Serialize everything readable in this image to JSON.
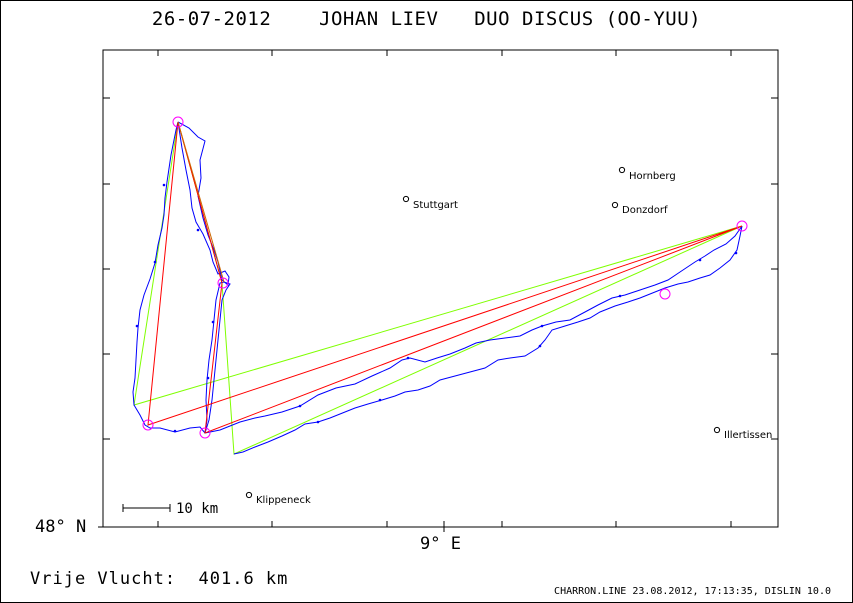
{
  "title": "26-07-2012    JOHAN LIEV   DUO DISCUS (OO-YUU)",
  "axes": {
    "x_label": "9° E",
    "y_label": "48° N"
  },
  "scale_bar": {
    "label": "10 km"
  },
  "cities": [
    {
      "id": "stuttgart",
      "name": "Stuttgart"
    },
    {
      "id": "hornberg",
      "name": "Hornberg"
    },
    {
      "id": "donzdorf",
      "name": "Donzdorf"
    },
    {
      "id": "illertissen",
      "name": "Illertissen"
    },
    {
      "id": "klippeneck",
      "name": "Klippeneck"
    }
  ],
  "colors": {
    "track": "#0000ff",
    "task_line": "#ff0000",
    "alt_line": "#7fff00",
    "turnpoint": "#ff00ff",
    "frame": "#000000"
  },
  "footer": {
    "distance": "Vrije Vlucht:  401.6 km",
    "credits": "CHARRON.LINE 23.08.2012, 17:13:35, DISLIN 10.0"
  }
}
